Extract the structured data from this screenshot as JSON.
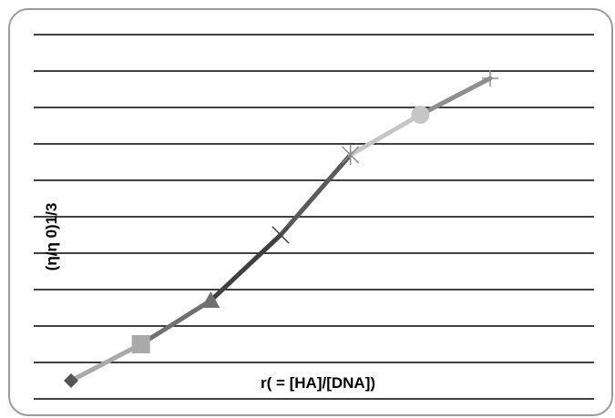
{
  "chart_data": {
    "type": "line",
    "title": "",
    "xlabel": "r( = [HA]/[DNA])",
    "ylabel": "(η/η 0)1/3",
    "grid": true,
    "legend": "none",
    "points": [
      {
        "x": 0,
        "y": 0.05,
        "marker": "diamond",
        "color": "#555555"
      },
      {
        "x": 1,
        "y": 0.15,
        "marker": "square",
        "color": "#a9a9a9"
      },
      {
        "x": 2,
        "y": 0.27,
        "marker": "triangle",
        "color": "#707070"
      },
      {
        "x": 3,
        "y": 0.45,
        "marker": "x",
        "color": "#3f3f3f"
      },
      {
        "x": 4,
        "y": 0.67,
        "marker": "star",
        "color": "#8a8a8a"
      },
      {
        "x": 5,
        "y": 0.78,
        "marker": "circle",
        "color": "#c6c6c6"
      },
      {
        "x": 6,
        "y": 0.88,
        "marker": "plus",
        "color": "#8f8f8f"
      }
    ],
    "xlim": [
      0,
      6
    ],
    "ylim": [
      0,
      1
    ],
    "gridline_count": 11
  }
}
